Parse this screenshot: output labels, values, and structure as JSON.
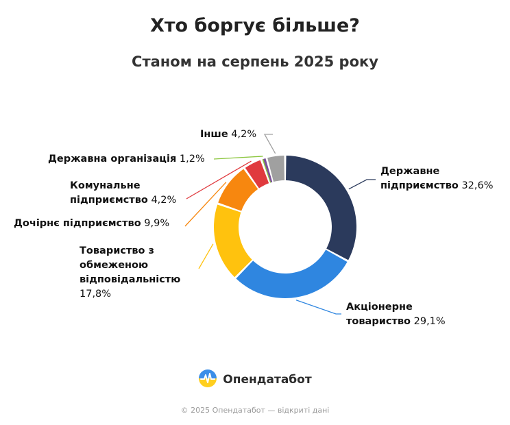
{
  "header": {
    "title": "Хто боргує більше?",
    "subtitle": "Станом на серпень 2025 року"
  },
  "chart_data": {
    "type": "pie",
    "donut": true,
    "title": "Хто боргує більше?",
    "subtitle": "Станом на серпень 2025 року",
    "slices": [
      {
        "name": "Державне підприємство",
        "value": 32.6,
        "value_label": "32,6%",
        "color": "#2b3a5c"
      },
      {
        "name": "Акціонерне товариство",
        "value": 29.1,
        "value_label": "29,1%",
        "color": "#2f86e0"
      },
      {
        "name": "Товариство з обмеженою відповідальністю",
        "value": 17.8,
        "value_label": "17,8%",
        "color": "#ffc20e"
      },
      {
        "name": "Дочірнє підприємство",
        "value": 9.9,
        "value_label": "9,9%",
        "color": "#f7870f"
      },
      {
        "name": "Комунальне підприємство",
        "value": 4.2,
        "value_label": "4,2%",
        "color": "#e03a3e"
      },
      {
        "name": "Державна організація",
        "value": 1.2,
        "value_label": "1,2%",
        "color": "#8cc63f"
      },
      {
        "name": "Інше",
        "value": 4.2,
        "value_label": "4,2%",
        "color": "#a0a0a0"
      }
    ],
    "extra_slice_color": "#7a4f9a"
  },
  "brand": {
    "name": "Опендатабот",
    "icon": "opendatabot-logo-icon"
  },
  "footer": {
    "text": "© 2025 Опендатабот — відкриті дані"
  }
}
